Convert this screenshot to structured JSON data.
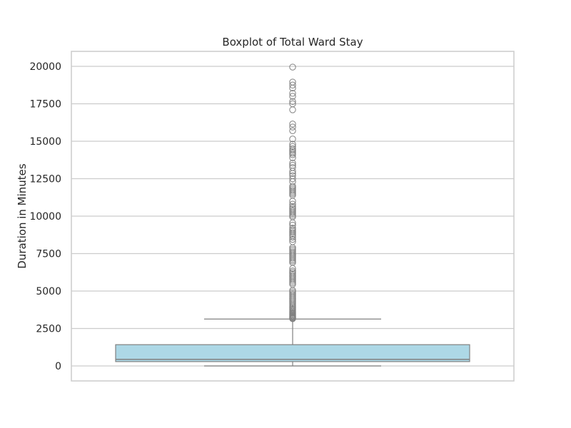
{
  "chart_data": {
    "type": "box",
    "title": "Boxplot of Total Ward Stay",
    "xlabel": "",
    "ylabel": "Duration in Minutes",
    "ylim": [
      -1000,
      21000
    ],
    "yticks": [
      0,
      2500,
      5000,
      7500,
      10000,
      12500,
      15000,
      17500,
      20000
    ],
    "grid": true,
    "colors": {
      "box": "#add8e6",
      "lines": "#808080",
      "grid": "#cccccc",
      "text": "#262626"
    },
    "box": {
      "whisker_low": 0,
      "q1": 290,
      "median": 440,
      "q3": 1420,
      "whisker_high": 3130
    },
    "outliers": [
      3150,
      3180,
      3210,
      3250,
      3300,
      3350,
      3400,
      3460,
      3520,
      3580,
      3650,
      3720,
      3800,
      3880,
      3960,
      4050,
      4150,
      4250,
      4350,
      4450,
      4550,
      4650,
      4750,
      4850,
      4950,
      5050,
      5450,
      5550,
      5650,
      5750,
      5850,
      5950,
      6050,
      6150,
      6250,
      6350,
      6500,
      6900,
      7000,
      7100,
      7200,
      7300,
      7400,
      7500,
      7600,
      7700,
      7800,
      7900,
      8300,
      8450,
      8600,
      8700,
      8800,
      8900,
      9000,
      9100,
      9200,
      9400,
      9550,
      9950,
      10050,
      10150,
      10250,
      10350,
      10450,
      10550,
      10650,
      10800,
      11000,
      11400,
      11500,
      11600,
      11700,
      11800,
      11900,
      12000,
      12300,
      12500,
      12700,
      12850,
      13000,
      13250,
      13400,
      13550,
      13900,
      14100,
      14200,
      14300,
      14400,
      14500,
      14650,
      14800,
      15150,
      15700,
      15950,
      16150,
      17100,
      17500,
      17650,
      18000,
      18200,
      18550,
      18750,
      18950,
      19950
    ]
  }
}
